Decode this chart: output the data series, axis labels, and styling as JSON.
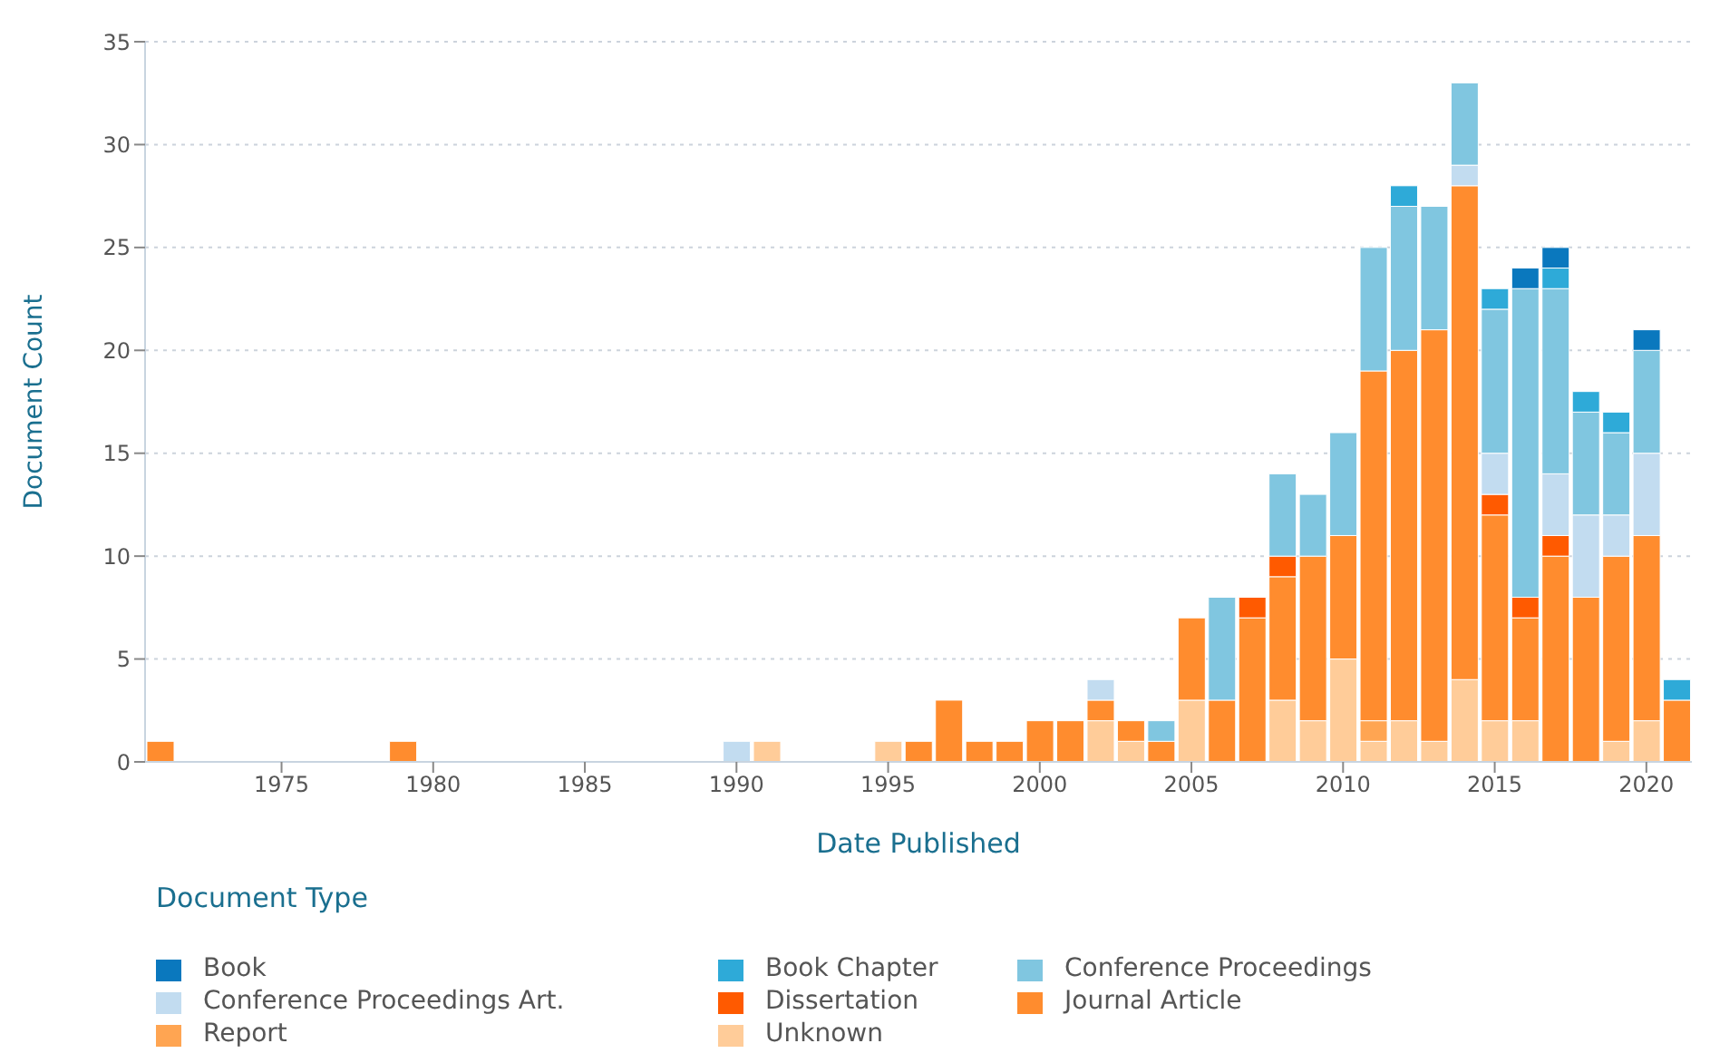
{
  "chart_data": {
    "type": "bar",
    "stacked": true,
    "xlabel": "Date Published",
    "ylabel": "Document Count",
    "legend_title": "Document Type",
    "x": [
      1971,
      1979,
      1990,
      1991,
      1995,
      1996,
      1997,
      1998,
      1999,
      2000,
      2001,
      2002,
      2003,
      2004,
      2005,
      2006,
      2007,
      2008,
      2009,
      2010,
      2011,
      2012,
      2013,
      2014,
      2015,
      2016,
      2017,
      2018,
      2019,
      2020,
      2021
    ],
    "xlim": [
      1970.5,
      2021.5
    ],
    "xticks": [
      1975,
      1980,
      1985,
      1990,
      1995,
      2000,
      2005,
      2010,
      2015,
      2020
    ],
    "ylim": [
      0,
      35
    ],
    "yticks": [
      0,
      5,
      10,
      15,
      20,
      25,
      30,
      35
    ],
    "grid": "y",
    "legend": "bottom",
    "series": [
      {
        "name": "Unknown",
        "color": "#ffcc99",
        "values": [
          0,
          0,
          0,
          1,
          1,
          0,
          0,
          0,
          0,
          0,
          0,
          2,
          1,
          0,
          3,
          0,
          0,
          3,
          2,
          5,
          1,
          2,
          1,
          4,
          2,
          2,
          0,
          0,
          1,
          2,
          0
        ]
      },
      {
        "name": "Report",
        "color": "#ffa552",
        "values": [
          0,
          0,
          0,
          0,
          0,
          0,
          0,
          0,
          0,
          0,
          0,
          0,
          0,
          0,
          0,
          0,
          0,
          0,
          0,
          0,
          1,
          0,
          0,
          0,
          0,
          0,
          0,
          0,
          0,
          0,
          0
        ]
      },
      {
        "name": "Journal Article",
        "color": "#ff8c2e",
        "values": [
          1,
          1,
          0,
          0,
          0,
          1,
          3,
          1,
          1,
          2,
          2,
          1,
          1,
          1,
          4,
          3,
          7,
          6,
          8,
          6,
          17,
          18,
          20,
          24,
          10,
          5,
          10,
          8,
          9,
          9,
          3
        ]
      },
      {
        "name": "Dissertation",
        "color": "#ff5a00",
        "values": [
          0,
          0,
          0,
          0,
          0,
          0,
          0,
          0,
          0,
          0,
          0,
          0,
          0,
          0,
          0,
          0,
          1,
          1,
          0,
          0,
          0,
          0,
          0,
          0,
          1,
          1,
          1,
          0,
          0,
          0,
          0
        ]
      },
      {
        "name": "Conference Proceedings Art.",
        "color": "#c2dcf0",
        "values": [
          0,
          0,
          1,
          0,
          0,
          0,
          0,
          0,
          0,
          0,
          0,
          1,
          0,
          0,
          0,
          0,
          0,
          0,
          0,
          0,
          0,
          0,
          0,
          1,
          2,
          0,
          3,
          4,
          2,
          4,
          0
        ]
      },
      {
        "name": "Conference Proceedings",
        "color": "#80c6e0",
        "values": [
          0,
          0,
          0,
          0,
          0,
          0,
          0,
          0,
          0,
          0,
          0,
          0,
          0,
          1,
          0,
          5,
          0,
          4,
          3,
          5,
          6,
          7,
          6,
          4,
          7,
          15,
          9,
          5,
          4,
          5,
          0
        ]
      },
      {
        "name": "Book Chapter",
        "color": "#2eaad8",
        "values": [
          0,
          0,
          0,
          0,
          0,
          0,
          0,
          0,
          0,
          0,
          0,
          0,
          0,
          0,
          0,
          0,
          0,
          0,
          0,
          0,
          0,
          1,
          0,
          0,
          1,
          0,
          1,
          1,
          1,
          0,
          1
        ]
      },
      {
        "name": "Book",
        "color": "#0a78be",
        "values": [
          0,
          0,
          0,
          0,
          0,
          0,
          0,
          0,
          0,
          0,
          0,
          0,
          0,
          0,
          0,
          0,
          0,
          0,
          0,
          0,
          0,
          0,
          0,
          0,
          0,
          1,
          1,
          0,
          0,
          1,
          0
        ]
      }
    ]
  }
}
